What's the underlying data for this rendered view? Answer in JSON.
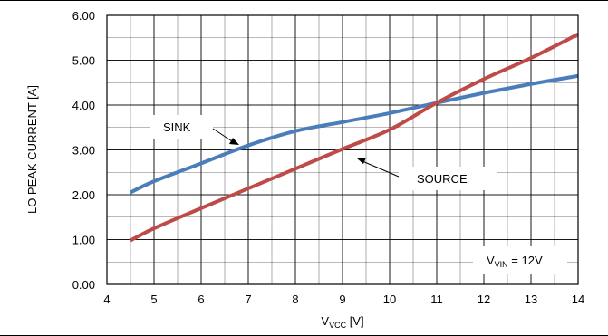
{
  "chart_data": {
    "type": "line",
    "title": "",
    "xlabel": {
      "main": "V",
      "sub": "VCC",
      "suffix": " [V]"
    },
    "ylabel": "LO PEAK CURRENT [A]",
    "xlim": [
      4,
      14
    ],
    "ylim": [
      0,
      6
    ],
    "grid": true,
    "x_ticks": [
      "4",
      "5",
      "6",
      "7",
      "8",
      "9",
      "10",
      "11",
      "12",
      "13",
      "14"
    ],
    "y_ticks": [
      "0.00",
      "1.00",
      "2.00",
      "3.00",
      "4.00",
      "5.00",
      "6.00"
    ],
    "series": [
      {
        "name": "SINK",
        "color": "#4a7ebb",
        "x": [
          4.5,
          5,
          6,
          7,
          8,
          9,
          10,
          11,
          12,
          13,
          14
        ],
        "y": [
          2.05,
          2.3,
          2.7,
          3.1,
          3.42,
          3.62,
          3.82,
          4.05,
          4.27,
          4.47,
          4.65
        ]
      },
      {
        "name": "SOURCE",
        "color": "#be4b48",
        "x": [
          4.5,
          5,
          6,
          7,
          8,
          9,
          10,
          11,
          12,
          13,
          14
        ],
        "y": [
          0.98,
          1.25,
          1.7,
          2.14,
          2.58,
          3.02,
          3.45,
          4.05,
          4.58,
          5.05,
          5.58
        ]
      }
    ],
    "annotations": {
      "sink_label": "SINK",
      "source_label": "SOURCE",
      "condition": {
        "main": "V",
        "sub": "VIN",
        "suffix": " = 12V"
      }
    }
  }
}
